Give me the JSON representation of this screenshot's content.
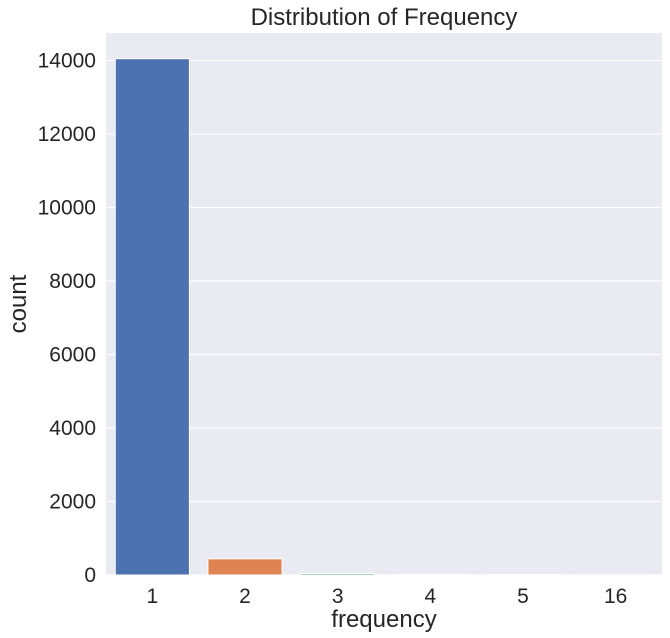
{
  "chart_data": {
    "type": "bar",
    "title": "Distribution of Frequency",
    "xlabel": "frequency",
    "ylabel": "count",
    "categories": [
      "1",
      "2",
      "3",
      "4",
      "5",
      "16"
    ],
    "values": [
      14050,
      440,
      40,
      12,
      6,
      2
    ],
    "ylim": [
      0,
      14750
    ],
    "yticks": [
      "0",
      "2000",
      "4000",
      "6000",
      "8000",
      "10000",
      "12000",
      "14000"
    ],
    "grid": true,
    "legend": "none",
    "colors": {
      "background": "#eaeaf2",
      "grid": "#ffffff",
      "bars": [
        "#4c72b0",
        "#dd8452",
        "#55a868",
        "#c44e52",
        "#8172b3",
        "#937860"
      ]
    }
  }
}
